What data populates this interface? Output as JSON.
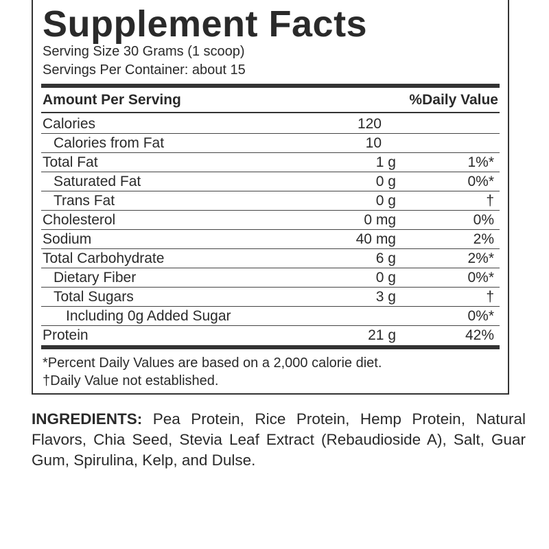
{
  "facts": {
    "title": "Supplement Facts",
    "serving_size": "Serving Size 30 Grams (1 scoop)",
    "servings_per_container": "Servings Per Container: about 15",
    "header": {
      "amount": "Amount Per Serving",
      "daily_value": "%Daily Value"
    },
    "rows": [
      {
        "label": "Calories",
        "amount": "120"
      },
      {
        "label": "Calories from Fat",
        "amount": "10"
      },
      {
        "label": "Total Fat",
        "amount": "1 g",
        "daily_value": "1%*"
      },
      {
        "label": "Saturated Fat",
        "amount": "0 g",
        "daily_value": "0%*"
      },
      {
        "label": "Trans Fat",
        "amount": "0 g",
        "daily_value": "†"
      },
      {
        "label": "Cholesterol",
        "amount": "0 mg",
        "daily_value": "0%"
      },
      {
        "label": "Sodium",
        "amount": "40 mg",
        "daily_value": "2%"
      },
      {
        "label": "Total Carbohydrate",
        "amount": "6 g",
        "daily_value": "2%*"
      },
      {
        "label": "Dietary Fiber",
        "amount": "0 g",
        "daily_value": "0%*"
      },
      {
        "label": "Total Sugars",
        "amount": "3 g",
        "daily_value": "†"
      },
      {
        "label": "Including 0g Added Sugar",
        "daily_value": "0%*"
      },
      {
        "label": "Protein",
        "amount": "21 g",
        "daily_value": "42%"
      }
    ],
    "footnotes": [
      "*Percent Daily Values are based on a 2,000 calorie diet.",
      "†Daily Value not established."
    ]
  },
  "ingredients": {
    "label": "INGREDIENTS:",
    "text": "Pea Protein, Rice Protein, Hemp Protein, Natural Flavors, Chia Seed, Stevia Leaf Extract (Rebaudioside A), Salt, Guar Gum, Spirulina, Kelp, and Dulse."
  }
}
